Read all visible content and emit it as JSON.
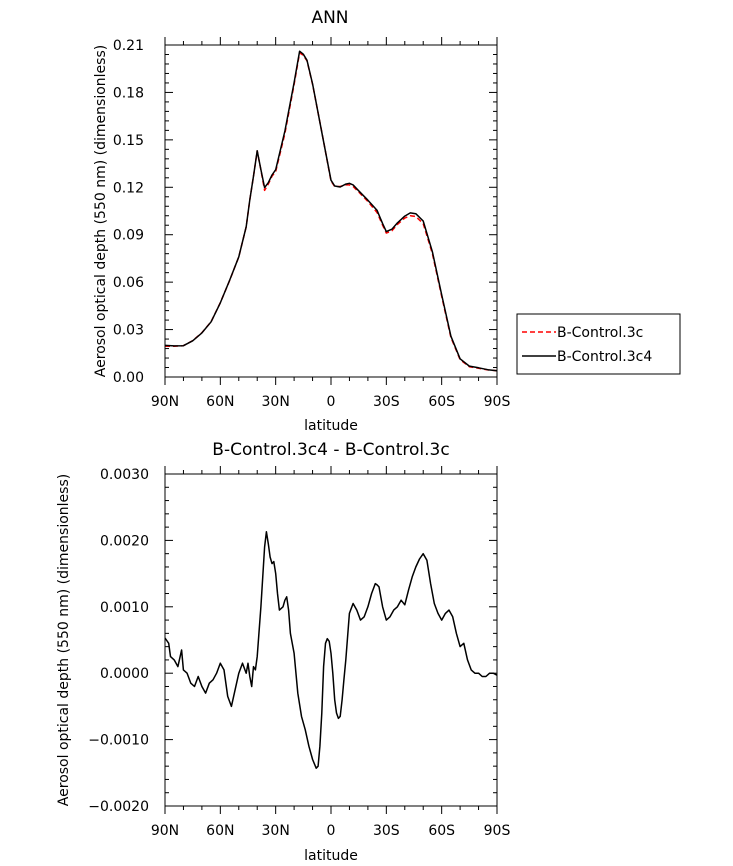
{
  "chart_data": [
    {
      "type": "line",
      "title": "ANN",
      "xlabel": "latitude",
      "ylabel": "Aerosol optical depth (550 nm) (dimensionless)",
      "xlim": [
        -90,
        90
      ],
      "ylim": [
        0.0,
        0.21
      ],
      "x_ticks": [
        "90N",
        "60N",
        "30N",
        "0",
        "30S",
        "60S",
        "90S"
      ],
      "y_ticks": [
        "0.00",
        "0.03",
        "0.06",
        "0.09",
        "0.12",
        "0.15",
        "0.18",
        "0.21"
      ],
      "legend": "right",
      "x": [
        -90,
        -85,
        -80,
        -75,
        -70,
        -65,
        -60,
        -55,
        -50,
        -46,
        -44,
        -42,
        -40,
        -38,
        -36,
        -34,
        -32,
        -30,
        -25,
        -20,
        -17,
        -15,
        -13,
        -10,
        -5,
        0,
        2,
        5,
        8,
        10,
        12,
        15,
        20,
        25,
        28,
        30,
        33,
        36,
        40,
        43,
        46,
        50,
        55,
        60,
        65,
        70,
        75,
        80,
        85,
        90
      ],
      "series": [
        {
          "name": "B-Control.3c",
          "color": "#ff0000",
          "style": "dashed",
          "values": [
            0.0195,
            0.0195,
            0.0198,
            0.023,
            0.028,
            0.035,
            0.047,
            0.061,
            0.076,
            0.095,
            0.112,
            0.127,
            0.143,
            0.131,
            0.118,
            0.122,
            0.127,
            0.13,
            0.154,
            0.185,
            0.205,
            0.2035,
            0.2,
            0.185,
            0.155,
            0.124,
            0.1205,
            0.1205,
            0.1215,
            0.1215,
            0.1205,
            0.117,
            0.111,
            0.104,
            0.096,
            0.091,
            0.0925,
            0.0965,
            0.1005,
            0.102,
            0.1015,
            0.097,
            0.078,
            0.051,
            0.025,
            0.011,
            0.0065,
            0.0055,
            0.0045,
            0.004
          ]
        },
        {
          "name": "B-Control.3c4",
          "color": "#000000",
          "style": "solid",
          "values": [
            0.02,
            0.0197,
            0.0198,
            0.0229,
            0.0279,
            0.0349,
            0.0469,
            0.0611,
            0.076,
            0.0951,
            0.1121,
            0.1271,
            0.1431,
            0.1312,
            0.1198,
            0.1229,
            0.1278,
            0.1311,
            0.1556,
            0.1862,
            0.2061,
            0.2042,
            0.2003,
            0.1853,
            0.1548,
            0.1245,
            0.1208,
            0.1202,
            0.122,
            0.1225,
            0.1215,
            0.1178,
            0.1118,
            0.1054,
            0.097,
            0.092,
            0.0935,
            0.0975,
            0.1018,
            0.1038,
            0.1033,
            0.0987,
            0.0792,
            0.0519,
            0.0258,
            0.0115,
            0.0069,
            0.0058,
            0.0046,
            0.004
          ]
        }
      ]
    },
    {
      "type": "line",
      "title": "B-Control.3c4 - B-Control.3c",
      "xlabel": "latitude",
      "ylabel": "Aerosol optical depth (550 nm) (dimensionless)",
      "xlim": [
        -90,
        90
      ],
      "ylim": [
        -0.002,
        0.003
      ],
      "x_ticks": [
        "90N",
        "60N",
        "30N",
        "0",
        "30S",
        "60S",
        "90S"
      ],
      "y_ticks": [
        "-0.0020",
        "-0.0010",
        "0.0000",
        "0.0010",
        "0.0020",
        "0.0030"
      ],
      "x": [
        -90,
        -88,
        -87,
        -85,
        -83,
        -81,
        -80,
        -78,
        -76,
        -74,
        -72,
        -70,
        -68,
        -66,
        -64,
        -62,
        -60,
        -58,
        -56,
        -54,
        -52,
        -50,
        -48,
        -46,
        -45,
        -44,
        -43,
        -42,
        -41,
        -40,
        -38,
        -36,
        -35,
        -34,
        -33,
        -32,
        -31,
        -30,
        -29,
        -28,
        -26,
        -25,
        -24,
        -23,
        -22,
        -20,
        -18,
        -16,
        -14,
        -12,
        -10,
        -8,
        -7,
        -6,
        -5,
        -4,
        -3,
        -2,
        -1,
        0,
        1,
        2,
        3,
        4,
        5,
        6,
        7,
        8,
        10,
        12,
        14,
        16,
        18,
        20,
        22,
        24,
        25,
        26,
        28,
        30,
        32,
        34,
        36,
        38,
        40,
        42,
        44,
        46,
        48,
        50,
        52,
        54,
        56,
        58,
        60,
        62,
        64,
        66,
        68,
        70,
        72,
        74,
        76,
        78,
        80,
        82,
        84,
        86,
        88,
        90
      ],
      "series": [
        {
          "name": "B-Control.3c4 - B-Control.3c",
          "color": "#000000",
          "values": [
            0.00053,
            0.00045,
            0.00025,
            0.0002,
            0.0001,
            0.00035,
            5e-05,
            0.0,
            -0.00015,
            -0.0002,
            -5e-05,
            -0.0002,
            -0.0003,
            -0.00015,
            -0.0001,
            0.0,
            0.00015,
            5e-05,
            -0.00035,
            -0.0005,
            -0.00025,
            0.0,
            0.00015,
            0.0,
            0.00015,
            -5e-05,
            -0.0002,
            0.0001,
            5e-05,
            0.00025,
            0.001,
            0.0019,
            0.00213,
            0.00195,
            0.00175,
            0.00165,
            0.00168,
            0.0015,
            0.0012,
            0.00095,
            0.001,
            0.0011,
            0.00115,
            0.00095,
            0.0006,
            0.0003,
            -0.0003,
            -0.00065,
            -0.00085,
            -0.0011,
            -0.0013,
            -0.00143,
            -0.0014,
            -0.0011,
            -0.0006,
            0.0001,
            0.00045,
            0.00052,
            0.00048,
            0.0003,
            0.0,
            -0.0004,
            -0.0006,
            -0.00068,
            -0.00065,
            -0.0004,
            -0.0001,
            0.0002,
            0.0009,
            0.00105,
            0.00095,
            0.0008,
            0.00085,
            0.001,
            0.0012,
            0.00135,
            0.00133,
            0.0013,
            0.001,
            0.0008,
            0.00085,
            0.00095,
            0.001,
            0.0011,
            0.00103,
            0.00125,
            0.00145,
            0.0016,
            0.00172,
            0.0018,
            0.0017,
            0.00135,
            0.00105,
            0.0009,
            0.0008,
            0.0009,
            0.00095,
            0.00085,
            0.0006,
            0.0004,
            0.00045,
            0.0002,
            5e-05,
            0.0,
            0.0,
            -5e-05,
            -5e-05,
            0.0,
            0.0,
            -3e-05
          ]
        }
      ]
    }
  ],
  "legend": {
    "items": [
      {
        "label": "B-Control.3c"
      },
      {
        "label": "B-Control.3c4"
      }
    ]
  }
}
